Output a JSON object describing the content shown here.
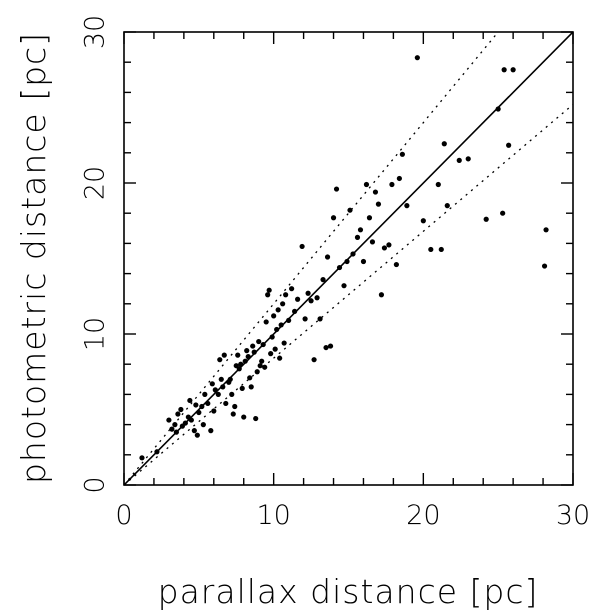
{
  "chart_data": {
    "type": "scatter",
    "title": "",
    "xlabel": "parallax distance [pc]",
    "ylabel": "photometric distance [pc]",
    "xlim": [
      0,
      30
    ],
    "ylim": [
      0,
      30
    ],
    "xticks": [
      "0",
      "10",
      "20",
      "30"
    ],
    "yticks": [
      "0",
      "10",
      "20",
      "30"
    ],
    "grid": false,
    "reference_lines": [
      {
        "style": "solid",
        "slope": 1.0
      },
      {
        "style": "dotted",
        "slope": 1.2
      },
      {
        "style": "dotted",
        "slope": 0.84
      }
    ],
    "points": [
      [
        1.2,
        1.8
      ],
      [
        2.2,
        2.2
      ],
      [
        3.0,
        4.3
      ],
      [
        3.2,
        3.7
      ],
      [
        3.4,
        4.0
      ],
      [
        3.5,
        3.5
      ],
      [
        3.6,
        4.7
      ],
      [
        3.8,
        5.0
      ],
      [
        3.9,
        3.9
      ],
      [
        4.1,
        4.1
      ],
      [
        4.3,
        4.5
      ],
      [
        4.4,
        5.6
      ],
      [
        4.5,
        4.3
      ],
      [
        4.7,
        3.6
      ],
      [
        4.8,
        5.3
      ],
      [
        4.9,
        3.3
      ],
      [
        5.0,
        4.8
      ],
      [
        5.2,
        5.2
      ],
      [
        5.3,
        4.0
      ],
      [
        5.4,
        6.0
      ],
      [
        5.6,
        5.4
      ],
      [
        5.8,
        3.6
      ],
      [
        5.9,
        6.7
      ],
      [
        6.0,
        4.9
      ],
      [
        6.1,
        6.3
      ],
      [
        6.3,
        6.0
      ],
      [
        6.4,
        8.3
      ],
      [
        6.5,
        7.0
      ],
      [
        6.6,
        6.5
      ],
      [
        6.7,
        8.6
      ],
      [
        6.8,
        5.4
      ],
      [
        7.0,
        6.8
      ],
      [
        7.1,
        7.0
      ],
      [
        7.2,
        6.0
      ],
      [
        7.3,
        4.7
      ],
      [
        7.4,
        5.2
      ],
      [
        7.5,
        7.9
      ],
      [
        7.6,
        8.6
      ],
      [
        7.7,
        7.7
      ],
      [
        7.8,
        8.0
      ],
      [
        7.9,
        6.4
      ],
      [
        8.0,
        4.5
      ],
      [
        8.1,
        8.2
      ],
      [
        8.2,
        8.9
      ],
      [
        8.3,
        8.5
      ],
      [
        8.4,
        7.1
      ],
      [
        8.5,
        6.5
      ],
      [
        8.6,
        9.2
      ],
      [
        8.7,
        8.8
      ],
      [
        8.8,
        4.4
      ],
      [
        8.9,
        7.5
      ],
      [
        9.0,
        9.5
      ],
      [
        9.1,
        7.9
      ],
      [
        9.2,
        8.2
      ],
      [
        9.3,
        9.3
      ],
      [
        9.4,
        7.8
      ],
      [
        9.5,
        10.8
      ],
      [
        9.6,
        12.6
      ],
      [
        9.7,
        12.9
      ],
      [
        9.8,
        8.7
      ],
      [
        9.9,
        9.8
      ],
      [
        10.0,
        11.2
      ],
      [
        10.1,
        9.0
      ],
      [
        10.2,
        10.3
      ],
      [
        10.3,
        11.6
      ],
      [
        10.4,
        8.4
      ],
      [
        10.5,
        10.6
      ],
      [
        10.6,
        12.0
      ],
      [
        10.7,
        9.4
      ],
      [
        10.8,
        12.6
      ],
      [
        11.0,
        10.9
      ],
      [
        11.2,
        13.0
      ],
      [
        11.4,
        11.5
      ],
      [
        11.6,
        12.3
      ],
      [
        11.9,
        15.8
      ],
      [
        12.1,
        11.0
      ],
      [
        12.3,
        12.7
      ],
      [
        12.5,
        12.2
      ],
      [
        12.7,
        8.3
      ],
      [
        12.9,
        12.4
      ],
      [
        13.1,
        11.0
      ],
      [
        13.3,
        13.6
      ],
      [
        13.5,
        9.1
      ],
      [
        13.6,
        15.1
      ],
      [
        13.8,
        9.2
      ],
      [
        14.0,
        17.7
      ],
      [
        14.2,
        19.6
      ],
      [
        14.4,
        14.4
      ],
      [
        14.7,
        13.2
      ],
      [
        14.9,
        14.8
      ],
      [
        15.1,
        18.2
      ],
      [
        15.3,
        15.3
      ],
      [
        15.6,
        16.4
      ],
      [
        15.8,
        16.9
      ],
      [
        16.0,
        14.8
      ],
      [
        16.2,
        19.9
      ],
      [
        16.4,
        17.7
      ],
      [
        16.6,
        16.1
      ],
      [
        16.8,
        19.4
      ],
      [
        17.0,
        18.6
      ],
      [
        17.2,
        12.6
      ],
      [
        17.4,
        15.7
      ],
      [
        17.7,
        15.9
      ],
      [
        17.9,
        19.9
      ],
      [
        18.2,
        14.6
      ],
      [
        18.4,
        20.3
      ],
      [
        18.6,
        21.9
      ],
      [
        18.9,
        18.5
      ],
      [
        19.6,
        28.3
      ],
      [
        20.0,
        17.5
      ],
      [
        20.5,
        15.6
      ],
      [
        21.0,
        19.9
      ],
      [
        21.2,
        15.6
      ],
      [
        21.4,
        22.6
      ],
      [
        21.6,
        18.5
      ],
      [
        22.4,
        21.5
      ],
      [
        23.0,
        21.6
      ],
      [
        24.2,
        17.6
      ],
      [
        25.0,
        24.9
      ],
      [
        25.3,
        18.0
      ],
      [
        25.4,
        27.5
      ],
      [
        25.7,
        22.5
      ],
      [
        26.0,
        27.5
      ],
      [
        28.1,
        14.5
      ],
      [
        28.2,
        16.9
      ]
    ]
  }
}
